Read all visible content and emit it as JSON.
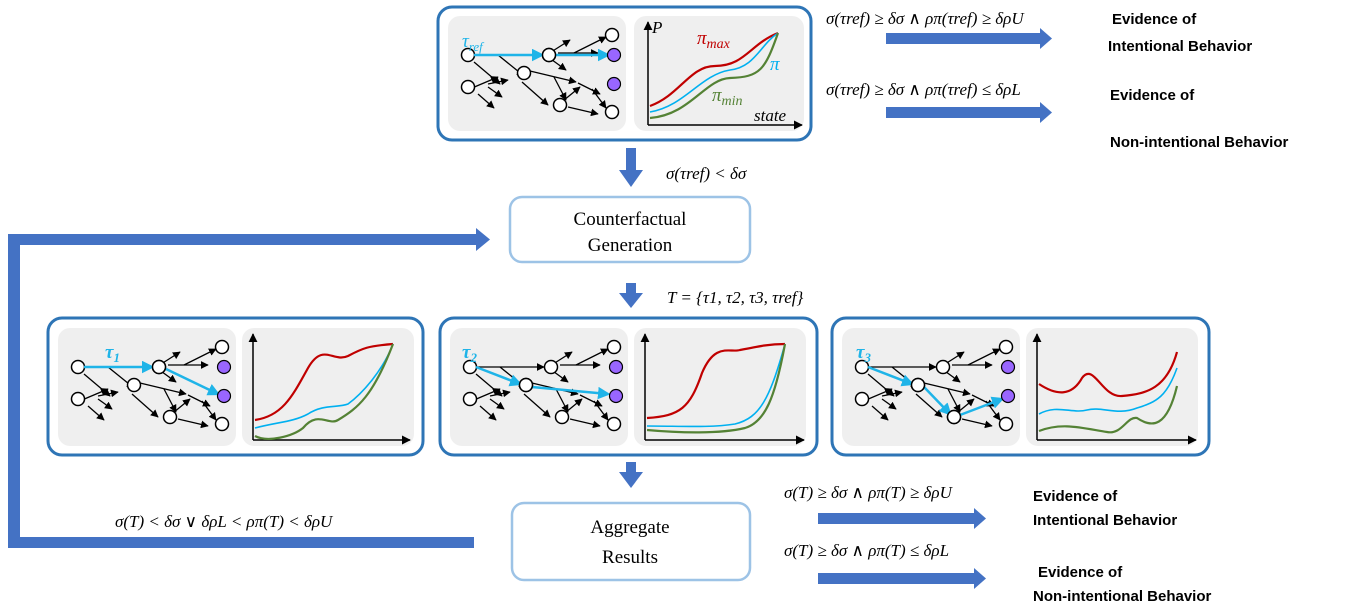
{
  "top_panel": {
    "trajectory_label": "τ",
    "trajectory_sub": "ref",
    "axis_y_label": "P",
    "axis_x_label": "state",
    "curve_max_label": "π",
    "curve_max_sub": "max",
    "curve_mid_label": "π",
    "curve_min_label": "π",
    "curve_min_sub": "min"
  },
  "top_conditions": [
    {
      "formula": "σ(τref) ≥ δσ ∧ ρπ(τref) ≥ δρU",
      "evidence_line1": "Evidence of",
      "evidence_line2": "Intentional Behavior"
    },
    {
      "formula": "σ(τref) ≥ δσ ∧ ρπ(τref) ≤ δρL",
      "evidence_line1": "Evidence of",
      "evidence_line2": "Non-intentional Behavior"
    }
  ],
  "step1_condition": "σ(τref) < δσ",
  "counterfactual_box": {
    "line1": "Counterfactual",
    "line2": "Generation"
  },
  "set_label": "T = {τ1, τ2, τ3, τref}",
  "panels": [
    {
      "traj_label": "τ",
      "traj_sub": "1"
    },
    {
      "traj_label": "τ",
      "traj_sub": "2"
    },
    {
      "traj_label": "τ",
      "traj_sub": "3"
    }
  ],
  "aggregate_box": {
    "line1": "Aggregate",
    "line2": "Results"
  },
  "loop_condition": "σ(T) < δσ ∨ δρL < ρπ(T) < δρU",
  "bottom_conditions": [
    {
      "formula": "σ(T) ≥ δσ ∧ ρπ(T) ≥ δρU",
      "evidence_line1": "Evidence of",
      "evidence_line2": "Intentional Behavior"
    },
    {
      "formula": "σ(T) ≥ δσ ∧ ρπ(T) ≤ δρL",
      "evidence_line1": "Evidence of",
      "evidence_line2": "Non-intentional Behavior"
    }
  ],
  "colors": {
    "arrow_blue": "#4472c4",
    "panel_border": "#2e75b6",
    "box_border": "#9dc3e6",
    "highlight": "#1fb4e8",
    "red": "#c00000",
    "green": "#548235",
    "cyan": "#00b0f0",
    "terminal_node": "#9966ff",
    "panel_fill": "#efefef"
  }
}
